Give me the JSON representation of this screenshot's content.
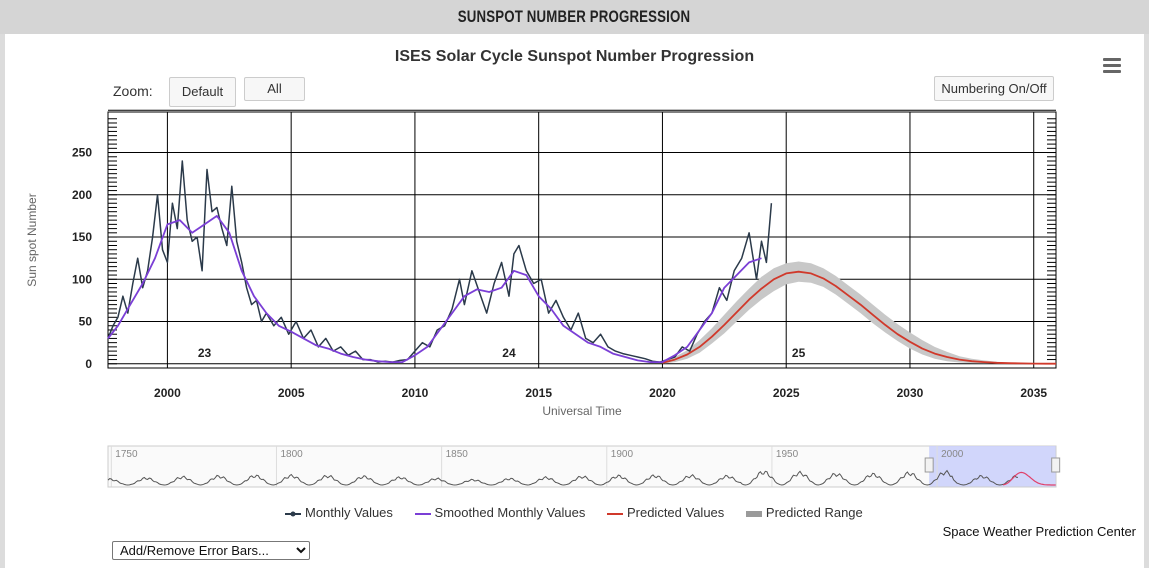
{
  "header": {
    "title": "SUNSPOT NUMBER PROGRESSION"
  },
  "toolbar": {
    "zoom_label": "Zoom:",
    "default_label": "Default",
    "all_label": "All",
    "numbering_label": "Numbering On/Off"
  },
  "menu": {
    "icon": "hamburger-menu-icon"
  },
  "legend": {
    "monthly": "Monthly Values",
    "smoothed": "Smoothed Monthly Values",
    "predicted": "Predicted Values",
    "range": "Predicted Range"
  },
  "credit": "Space Weather Prediction Center",
  "error_bars": {
    "selected": "Add/Remove Error Bars..."
  },
  "colors": {
    "monthly": "#2b3a4a",
    "smoothed": "#7b3fd6",
    "predicted": "#d0392b",
    "range": "#c8c8c8",
    "navigator_selection": "#c9cffa"
  },
  "chart_data": {
    "type": "line",
    "title": "ISES Solar Cycle Sunspot Number Progression",
    "xlabel": "Universal Time",
    "ylabel": "Sun spot Number",
    "xlim": [
      1997.6,
      2035.9
    ],
    "ylim": [
      -5,
      298
    ],
    "x_ticks": [
      2000,
      2005,
      2010,
      2015,
      2020,
      2025,
      2030,
      2035
    ],
    "y_ticks": [
      0,
      50,
      100,
      150,
      200,
      250
    ],
    "grid": true,
    "legend_position": "bottom",
    "cycle_labels": [
      {
        "label": "23",
        "x": 2001.5
      },
      {
        "label": "24",
        "x": 2013.8
      },
      {
        "label": "25",
        "x": 2025.5
      }
    ],
    "series": [
      {
        "name": "Monthly Values",
        "x": [
          1997.6,
          1997.8,
          1998.0,
          1998.2,
          1998.4,
          1998.6,
          1998.8,
          1999.0,
          1999.2,
          1999.4,
          1999.6,
          1999.8,
          2000.0,
          2000.2,
          2000.4,
          2000.6,
          2000.8,
          2001.0,
          2001.2,
          2001.4,
          2001.6,
          2001.8,
          2002.0,
          2002.2,
          2002.4,
          2002.6,
          2002.8,
          2003.0,
          2003.2,
          2003.4,
          2003.6,
          2003.8,
          2004.0,
          2004.3,
          2004.6,
          2004.9,
          2005.2,
          2005.5,
          2005.8,
          2006.1,
          2006.4,
          2006.7,
          2007.0,
          2007.3,
          2007.6,
          2007.9,
          2008.2,
          2008.5,
          2008.8,
          2009.1,
          2009.4,
          2009.7,
          2010.0,
          2010.3,
          2010.6,
          2010.9,
          2011.2,
          2011.5,
          2011.8,
          2012.0,
          2012.3,
          2012.6,
          2012.9,
          2013.2,
          2013.5,
          2013.8,
          2014.0,
          2014.2,
          2014.5,
          2014.8,
          2015.1,
          2015.4,
          2015.7,
          2016.0,
          2016.3,
          2016.6,
          2016.9,
          2017.2,
          2017.5,
          2017.8,
          2018.1,
          2018.4,
          2018.7,
          2019.0,
          2019.3,
          2019.6,
          2019.9,
          2020.2,
          2020.5,
          2020.8,
          2021.1,
          2021.4,
          2021.7,
          2022.0,
          2022.3,
          2022.6,
          2022.9,
          2023.2,
          2023.5,
          2023.8,
          2024.0,
          2024.2,
          2024.4
        ],
        "values": [
          30,
          45,
          55,
          80,
          60,
          95,
          125,
          90,
          110,
          150,
          200,
          135,
          120,
          190,
          160,
          240,
          170,
          145,
          150,
          110,
          230,
          180,
          185,
          160,
          140,
          210,
          145,
          120,
          90,
          70,
          75,
          50,
          60,
          45,
          55,
          35,
          50,
          30,
          40,
          20,
          30,
          15,
          20,
          10,
          15,
          5,
          5,
          2,
          3,
          2,
          4,
          5,
          15,
          25,
          20,
          40,
          45,
          65,
          100,
          70,
          110,
          85,
          60,
          95,
          120,
          80,
          130,
          140,
          110,
          95,
          100,
          60,
          75,
          55,
          40,
          60,
          30,
          25,
          35,
          20,
          15,
          12,
          10,
          8,
          6,
          3,
          2,
          5,
          8,
          20,
          15,
          35,
          50,
          60,
          90,
          75,
          110,
          125,
          155,
          100,
          145,
          120,
          190
        ]
      },
      {
        "name": "Smoothed Monthly Values",
        "x": [
          1997.6,
          1998.0,
          1998.5,
          1999.0,
          1999.5,
          2000.0,
          2000.5,
          2001.0,
          2001.5,
          2002.0,
          2002.5,
          2003.0,
          2003.5,
          2004.0,
          2004.5,
          2005.0,
          2005.5,
          2006.0,
          2006.5,
          2007.0,
          2007.5,
          2008.0,
          2008.5,
          2009.0,
          2009.5,
          2010.0,
          2010.5,
          2011.0,
          2011.5,
          2012.0,
          2012.5,
          2013.0,
          2013.5,
          2014.0,
          2014.5,
          2015.0,
          2015.5,
          2016.0,
          2016.5,
          2017.0,
          2017.5,
          2018.0,
          2018.5,
          2019.0,
          2019.5,
          2020.0,
          2020.5,
          2021.0,
          2021.5,
          2022.0,
          2022.5,
          2023.0,
          2023.5,
          2024.0
        ],
        "values": [
          30,
          45,
          70,
          95,
          125,
          165,
          170,
          155,
          165,
          175,
          155,
          110,
          80,
          60,
          45,
          38,
          30,
          22,
          18,
          12,
          8,
          5,
          3,
          2,
          2,
          10,
          20,
          40,
          60,
          80,
          88,
          85,
          90,
          110,
          105,
          80,
          65,
          45,
          35,
          25,
          20,
          12,
          8,
          4,
          2,
          2,
          10,
          20,
          40,
          60,
          90,
          105,
          120,
          125
        ]
      },
      {
        "name": "Predicted Values",
        "x": [
          2020.0,
          2020.5,
          2021.0,
          2021.5,
          2022.0,
          2022.5,
          2023.0,
          2023.5,
          2024.0,
          2024.5,
          2025.0,
          2025.5,
          2026.0,
          2026.5,
          2027.0,
          2027.5,
          2028.0,
          2028.5,
          2029.0,
          2029.5,
          2030.0,
          2030.5,
          2031.0,
          2031.5,
          2032.0,
          2032.5,
          2033.0,
          2033.5,
          2034.0,
          2034.5,
          2035.0,
          2035.5,
          2035.9
        ],
        "values": [
          1,
          5,
          11,
          20,
          32,
          46,
          61,
          76,
          89,
          100,
          107,
          109,
          107,
          101,
          92,
          81,
          70,
          58,
          46,
          35,
          26,
          18,
          12,
          8,
          5,
          3,
          2,
          1.2,
          0.7,
          0.4,
          0.2,
          0.1,
          0.1
        ]
      },
      {
        "name": "Predicted Range",
        "x": [
          2020.0,
          2020.5,
          2021.0,
          2021.5,
          2022.0,
          2022.5,
          2023.0,
          2023.5,
          2024.0,
          2024.5,
          2025.0,
          2025.5,
          2026.0,
          2026.5,
          2027.0,
          2027.5,
          2028.0,
          2028.5,
          2029.0,
          2029.5,
          2030.0,
          2030.5,
          2031.0,
          2031.5,
          2032.0,
          2032.5,
          2033.0,
          2033.5,
          2034.0,
          2034.5,
          2035.0,
          2035.5,
          2035.9
        ],
        "low": [
          0,
          2,
          6,
          13,
          24,
          36,
          50,
          64,
          76,
          86,
          94,
          97,
          96,
          91,
          82,
          71,
          60,
          48,
          37,
          27,
          18,
          11,
          6,
          3,
          1.5,
          0.8,
          0.4,
          0.2,
          0.1,
          0,
          0,
          0,
          0
        ],
        "high": [
          2,
          8,
          16,
          28,
          42,
          58,
          74,
          89,
          103,
          113,
          119,
          121,
          119,
          113,
          104,
          93,
          82,
          70,
          58,
          47,
          37,
          28,
          20,
          14,
          9,
          6,
          4,
          2.5,
          1.5,
          1,
          0.6,
          0.4,
          0.3
        ]
      }
    ],
    "navigator": {
      "x_ticks": [
        1750,
        1800,
        1850,
        1900,
        1950,
        2000
      ],
      "selection": [
        1997.6,
        2035.9
      ],
      "xlim": [
        1749,
        2036
      ]
    }
  }
}
